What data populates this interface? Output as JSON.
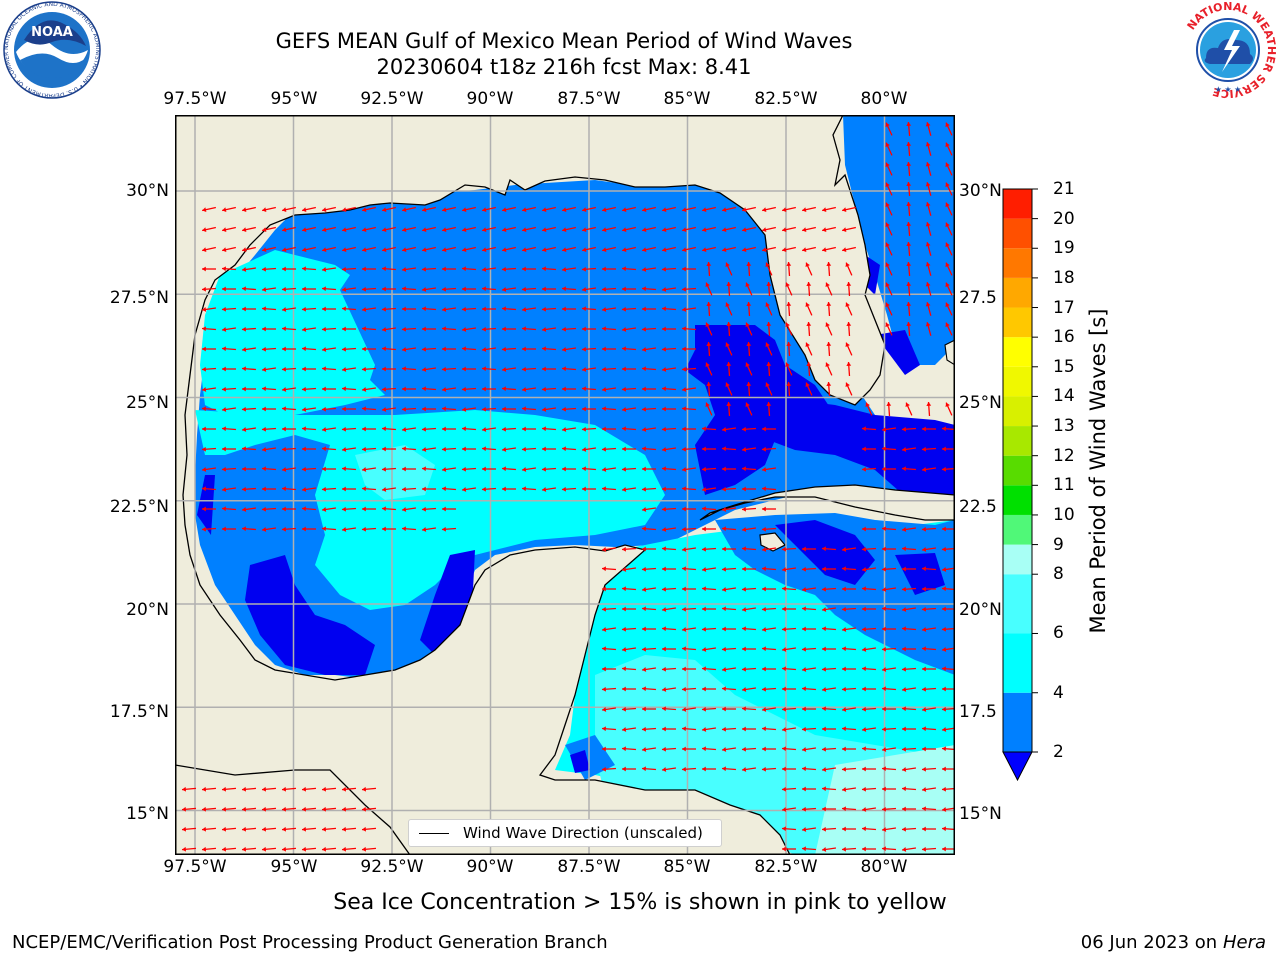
{
  "header": {
    "title_line1": "GEFS MEAN Gulf of Mexico Mean Period of Wind Waves",
    "title_line2": "20230604 t18z 216h fcst   Max: 8.41"
  },
  "map": {
    "lon_labels": [
      "97.5°W",
      "95°W",
      "92.5°W",
      "90°W",
      "87.5°W",
      "85°W",
      "82.5°W",
      "80°W"
    ],
    "lat_labels": [
      "30°N",
      "27.5°N",
      "25°N",
      "22.5°N",
      "20°N",
      "17.5°N",
      "15°N"
    ],
    "lat_labels_right": [
      "30°N",
      "27.5",
      "25°N",
      "22.5",
      "20°N",
      "17.5",
      "15°N"
    ],
    "lon_values": [
      -97.5,
      -95,
      -92.5,
      -90,
      -87.5,
      -85,
      -82.5,
      -80
    ],
    "lat_values": [
      30,
      27.5,
      25,
      22.5,
      20,
      17.5,
      15
    ],
    "colors": {
      "land": "#efeddc",
      "grid": "#b0b0b0",
      "arrow": "#ff0000",
      "period_2_4": "#0080ff",
      "period_below_2": "#0000f0",
      "period_4_6": "#00ffff",
      "period_6_8": "#48ffff",
      "period_8_9": "#a8fff5"
    }
  },
  "legend": {
    "label": "Wind Wave Direction (unscaled)"
  },
  "colorbar": {
    "label": "Mean Period of Wind Waves [s]",
    "ticks": [
      "21",
      "20",
      "19",
      "18",
      "17",
      "16",
      "15",
      "14",
      "13",
      "12",
      "11",
      "10",
      "9",
      "8",
      "6",
      "4",
      "2"
    ],
    "bands": [
      {
        "from": 2,
        "to": 4,
        "color": "#0080ff"
      },
      {
        "from": 4,
        "to": 6,
        "color": "#00ffff"
      },
      {
        "from": 6,
        "to": 8,
        "color": "#48ffff"
      },
      {
        "from": 8,
        "to": 9,
        "color": "#a8fff5"
      },
      {
        "from": 9,
        "to": 10,
        "color": "#50f878"
      },
      {
        "from": 10,
        "to": 11,
        "color": "#00e000"
      },
      {
        "from": 11,
        "to": 12,
        "color": "#58dc00"
      },
      {
        "from": 12,
        "to": 13,
        "color": "#a8e800"
      },
      {
        "from": 13,
        "to": 14,
        "color": "#d8f000"
      },
      {
        "from": 14,
        "to": 15,
        "color": "#f0f800"
      },
      {
        "from": 15,
        "to": 16,
        "color": "#ffff00"
      },
      {
        "from": 16,
        "to": 17,
        "color": "#ffc800"
      },
      {
        "from": 17,
        "to": 18,
        "color": "#ffa800"
      },
      {
        "from": 18,
        "to": 19,
        "color": "#ff7800"
      },
      {
        "from": 19,
        "to": 20,
        "color": "#ff5000"
      },
      {
        "from": 20,
        "to": 21,
        "color": "#ff1e00"
      }
    ],
    "extend_color": "#0000ff"
  },
  "footer": {
    "note": "Sea Ice Concentration > 15% is shown in pink to yellow",
    "credit": "NCEP/EMC/Verification Post Processing Product Generation Branch",
    "date": "06 Jun 2023 on",
    "host": "Hera"
  },
  "logos": {
    "noaa_text": "NOAA",
    "noaa_ring": "NATIONAL OCEANIC AND ATMOSPHERIC ADMINISTRATION • U.S. DEPARTMENT OF COMMERCE",
    "nws_ring": "NATIONAL WEATHER SERVICE"
  }
}
